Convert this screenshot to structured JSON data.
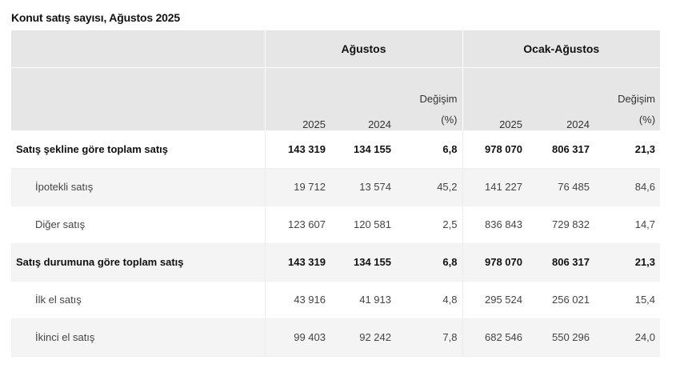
{
  "title": "Konut satış sayısı, Ağustos 2025",
  "table": {
    "group_headers": [
      "Ağustos",
      "Ocak-Ağustos"
    ],
    "sub_headers": [
      {
        "line1": "2025",
        "line2": ""
      },
      {
        "line1": "2024",
        "line2": ""
      },
      {
        "line1": "Değişim",
        "line2": "(%)"
      },
      {
        "line1": "2025",
        "line2": ""
      },
      {
        "line1": "2024",
        "line2": ""
      },
      {
        "line1": "Değişim",
        "line2": "(%)"
      }
    ],
    "rows": [
      {
        "label": "Satış şekline göre toplam satış",
        "values": [
          "143 319",
          "134 155",
          "6,8",
          "978 070",
          "806 317",
          "21,3"
        ]
      },
      {
        "label": "İpotekli satış",
        "values": [
          "19 712",
          "13 574",
          "45,2",
          "141 227",
          "76 485",
          "84,6"
        ]
      },
      {
        "label": "Diğer satış",
        "values": [
          "123 607",
          "120 581",
          "2,5",
          "836 843",
          "729 832",
          "14,7"
        ]
      },
      {
        "label": "Satış durumuna göre toplam satış",
        "values": [
          "143 319",
          "134 155",
          "6,8",
          "978 070",
          "806 317",
          "21,3"
        ]
      },
      {
        "label": "İlk el satış",
        "values": [
          "43 916",
          "41 913",
          "4,8",
          "295 524",
          "256 021",
          "15,4"
        ]
      },
      {
        "label": "İkinci el satış",
        "values": [
          "99 403",
          "92 242",
          "7,8",
          "682 546",
          "550 296",
          "24,0"
        ]
      }
    ]
  }
}
